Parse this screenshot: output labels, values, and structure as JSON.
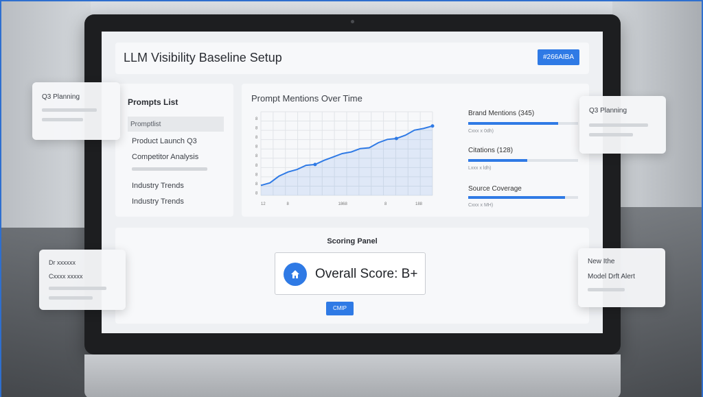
{
  "header": {
    "title": "LLM Visibility Baseline Setup",
    "badge": "#266AIBA"
  },
  "prompts": {
    "title": "Prompts List",
    "column_header": "Promptlist",
    "items": [
      "Product Launch Q3",
      "Competitor Analysis",
      "Industry Trends",
      "Industry Trends"
    ]
  },
  "chart": {
    "title": "Prompt Mentions Over Time",
    "accent": "#2f7ae5",
    "x_ticks": [
      "12",
      "8",
      "1868",
      "8",
      "188"
    ],
    "y_ticks": [
      "8",
      "8",
      "8",
      "8",
      "8",
      "8",
      "8",
      "8",
      "8"
    ]
  },
  "chart_data": {
    "type": "area",
    "title": "Prompt Mentions Over Time",
    "x": [
      1,
      2,
      3,
      4,
      5,
      6,
      7,
      8,
      9,
      10,
      11,
      12,
      13,
      14,
      15,
      16,
      17,
      18,
      19,
      20
    ],
    "values": [
      1.2,
      1.5,
      2.3,
      2.8,
      3.1,
      3.6,
      3.7,
      4.2,
      4.6,
      5.0,
      5.2,
      5.6,
      5.7,
      6.3,
      6.7,
      6.8,
      7.2,
      7.8,
      8.0,
      8.3
    ],
    "ylim": [
      0,
      10
    ],
    "grid": true
  },
  "metrics": [
    {
      "label": "Brand Mentions (345)",
      "sub": "Cxxx x 0dh)",
      "progress": 0.82
    },
    {
      "label": "Citations (128)",
      "sub": "Lxxx x ldh)",
      "progress": 0.54
    },
    {
      "label": "Source Coverage",
      "sub": "Cxxx x MH)",
      "progress": 0.88
    }
  ],
  "scoring": {
    "title": "Scoring Panel",
    "score_label": "Overall Score: B+",
    "button": "CMIP"
  },
  "floating": {
    "left_top": {
      "title": "Q3 Planning"
    },
    "right_top": {
      "title": "Q3 Planning"
    },
    "left_bottom": {
      "line1": "Dr xxxxxx",
      "line2": "Cxxxx xxxxx"
    },
    "right_bottom": {
      "line1": "New Ithe",
      "line2": "Model Drft Alert"
    }
  }
}
